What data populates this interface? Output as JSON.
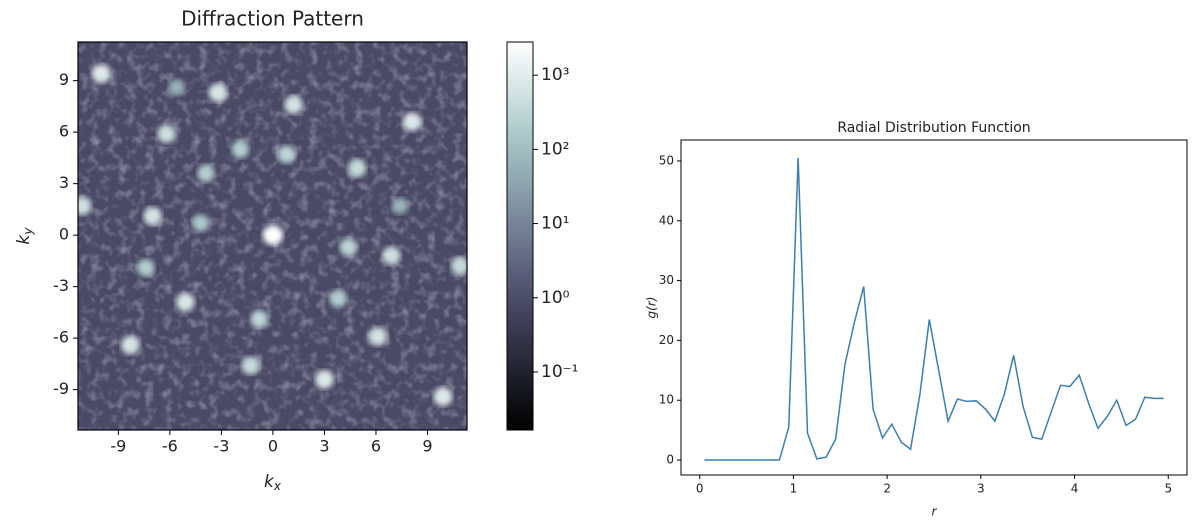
{
  "chart_data": [
    {
      "type": "heatmap",
      "title": "Diffraction Pattern",
      "xlabel": "kx",
      "ylabel": "ky",
      "xlim": [
        -11.35,
        11.3
      ],
      "ylim": [
        -11.35,
        11.25
      ],
      "xticks": [
        -9,
        -6,
        -3,
        0,
        3,
        6,
        9
      ],
      "yticks": [
        -9,
        -6,
        -3,
        0,
        3,
        6,
        9
      ],
      "colormap": "bone",
      "color_scale": "log",
      "clim": [
        0.0165,
        2800
      ],
      "cticks": [
        {
          "value": 0.1,
          "label": "10⁻¹"
        },
        {
          "value": 1,
          "label": "10⁰"
        },
        {
          "value": 10,
          "label": "10¹"
        },
        {
          "value": 100,
          "label": "10²"
        },
        {
          "value": 1000,
          "label": "10³"
        }
      ],
      "spots": {
        "x": [
          0,
          -10.0,
          -3.2,
          1.2,
          8.1,
          -6.2,
          -1.9,
          0.8,
          4.9,
          -3.9,
          -11.1,
          -7.0,
          -4.2,
          4.4,
          6.9,
          10.9,
          -7.4,
          -5.1,
          3.8,
          -0.8,
          6.1,
          -8.3,
          -1.3,
          3.0,
          9.9,
          7.4,
          -5.6
        ],
        "y": [
          0,
          9.4,
          8.3,
          7.6,
          6.6,
          5.9,
          5.0,
          4.7,
          3.9,
          3.6,
          1.7,
          1.1,
          0.7,
          -0.7,
          -1.2,
          -1.8,
          -1.9,
          -3.9,
          -3.7,
          -4.9,
          -5.9,
          -6.4,
          -7.6,
          -8.4,
          -9.4,
          1.7,
          8.6
        ],
        "intensity": [
          2800,
          900,
          700,
          600,
          800,
          500,
          200,
          300,
          400,
          200,
          500,
          600,
          150,
          300,
          500,
          400,
          200,
          700,
          200,
          300,
          600,
          700,
          400,
          800,
          900,
          60,
          60
        ]
      }
    },
    {
      "type": "line",
      "title": "Radial Distribution Function",
      "xlabel": "r",
      "ylabel": "g(r)",
      "xlim": [
        -0.2,
        5.2
      ],
      "ylim": [
        -2.5,
        53.5
      ],
      "xticks": [
        0,
        1,
        2,
        3,
        4,
        5
      ],
      "yticks": [
        0,
        10,
        20,
        30,
        40,
        50
      ],
      "color": "#3b7fb0",
      "x": [
        0.05,
        0.15,
        0.25,
        0.35,
        0.45,
        0.55,
        0.65,
        0.75,
        0.85,
        0.95,
        1.05,
        1.15,
        1.25,
        1.35,
        1.45,
        1.55,
        1.65,
        1.75,
        1.85,
        1.95,
        2.05,
        2.15,
        2.25,
        2.35,
        2.45,
        2.55,
        2.65,
        2.75,
        2.85,
        2.95,
        3.05,
        3.15,
        3.25,
        3.35,
        3.45,
        3.55,
        3.65,
        3.75,
        3.85,
        3.95,
        4.05,
        4.15,
        4.25,
        4.35,
        4.45,
        4.55,
        4.65,
        4.75,
        4.85,
        4.95
      ],
      "values": [
        0,
        0,
        0,
        0,
        0,
        0,
        0,
        0,
        0,
        5.5,
        50.5,
        4.5,
        0.2,
        0.5,
        3.5,
        16,
        23,
        29,
        8.5,
        3.7,
        6,
        3,
        1.8,
        11,
        23.5,
        15,
        6.5,
        10.2,
        9.8,
        9.9,
        8.5,
        6.5,
        11,
        17.5,
        9,
        3.8,
        3.5,
        8,
        12.5,
        12.3,
        14.2,
        9.5,
        5.3,
        7.3,
        10,
        5.8,
        6.8,
        10.5,
        10.3,
        10.3
      ]
    }
  ]
}
